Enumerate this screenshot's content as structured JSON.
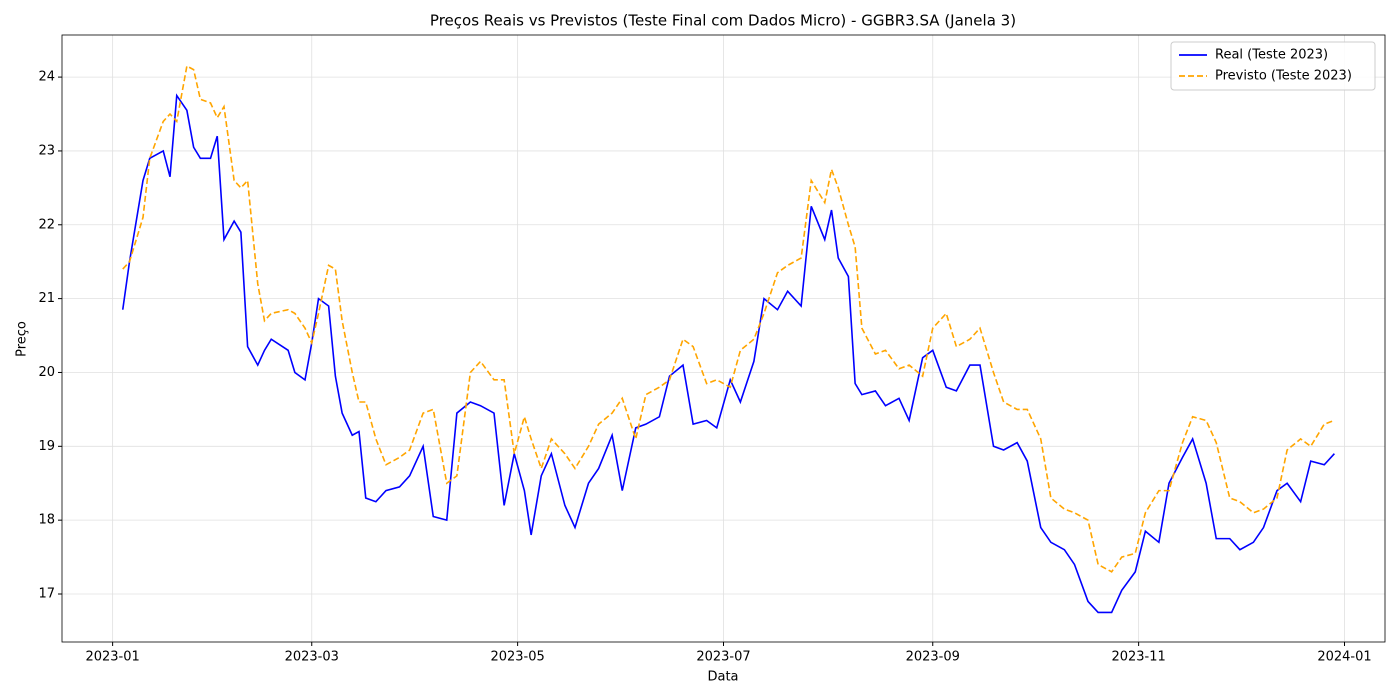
{
  "chart_data": {
    "type": "line",
    "title": "Preços Reais vs Previstos (Teste Final com Dados Micro) - GGBR3.SA (Janela 3)",
    "xlabel": "Data",
    "ylabel": "Preço",
    "x": [
      "2023-01-04",
      "2023-01-06",
      "2023-01-10",
      "2023-01-12",
      "2023-01-16",
      "2023-01-18",
      "2023-01-20",
      "2023-01-23",
      "2023-01-25",
      "2023-01-27",
      "2023-01-30",
      "2023-02-01",
      "2023-02-03",
      "2023-02-06",
      "2023-02-08",
      "2023-02-10",
      "2023-02-13",
      "2023-02-15",
      "2023-02-17",
      "2023-02-22",
      "2023-02-24",
      "2023-02-27",
      "2023-03-01",
      "2023-03-03",
      "2023-03-06",
      "2023-03-08",
      "2023-03-10",
      "2023-03-13",
      "2023-03-15",
      "2023-03-17",
      "2023-03-20",
      "2023-03-23",
      "2023-03-27",
      "2023-03-30",
      "2023-04-03",
      "2023-04-06",
      "2023-04-10",
      "2023-04-13",
      "2023-04-17",
      "2023-04-20",
      "2023-04-24",
      "2023-04-27",
      "2023-04-30",
      "2023-05-03",
      "2023-05-05",
      "2023-05-08",
      "2023-05-11",
      "2023-05-15",
      "2023-05-18",
      "2023-05-22",
      "2023-05-25",
      "2023-05-29",
      "2023-06-01",
      "2023-06-05",
      "2023-06-08",
      "2023-06-12",
      "2023-06-15",
      "2023-06-19",
      "2023-06-22",
      "2023-06-26",
      "2023-06-29",
      "2023-07-03",
      "2023-07-06",
      "2023-07-10",
      "2023-07-13",
      "2023-07-17",
      "2023-07-20",
      "2023-07-24",
      "2023-07-27",
      "2023-07-31",
      "2023-08-02",
      "2023-08-04",
      "2023-08-07",
      "2023-08-09",
      "2023-08-11",
      "2023-08-15",
      "2023-08-18",
      "2023-08-22",
      "2023-08-25",
      "2023-08-29",
      "2023-09-01",
      "2023-09-05",
      "2023-09-08",
      "2023-09-12",
      "2023-09-15",
      "2023-09-19",
      "2023-09-22",
      "2023-09-26",
      "2023-09-29",
      "2023-10-03",
      "2023-10-06",
      "2023-10-10",
      "2023-10-13",
      "2023-10-17",
      "2023-10-20",
      "2023-10-24",
      "2023-10-27",
      "2023-10-31",
      "2023-11-03",
      "2023-11-07",
      "2023-11-10",
      "2023-11-14",
      "2023-11-17",
      "2023-11-21",
      "2023-11-24",
      "2023-11-28",
      "2023-12-01",
      "2023-12-05",
      "2023-12-08",
      "2023-12-12",
      "2023-12-15",
      "2023-12-19",
      "2023-12-22",
      "2023-12-26",
      "2023-12-29"
    ],
    "series": [
      {
        "name": "Real (Teste 2023)",
        "color": "#0000ff",
        "dash": false,
        "values": [
          20.85,
          21.5,
          22.6,
          22.9,
          23.0,
          22.65,
          23.75,
          23.55,
          23.05,
          22.9,
          22.9,
          23.2,
          21.8,
          22.05,
          21.9,
          20.35,
          20.1,
          20.3,
          20.45,
          20.3,
          20.0,
          19.9,
          20.4,
          21.0,
          20.9,
          19.95,
          19.45,
          19.15,
          19.2,
          18.3,
          18.25,
          18.4,
          18.45,
          18.6,
          19.0,
          18.05,
          18.0,
          19.45,
          19.6,
          19.55,
          19.45,
          18.2,
          18.9,
          18.4,
          17.8,
          18.6,
          18.9,
          18.2,
          17.9,
          18.5,
          18.7,
          19.15,
          18.4,
          19.25,
          19.3,
          19.4,
          19.95,
          20.1,
          19.3,
          19.35,
          19.25,
          19.9,
          19.6,
          20.15,
          21.0,
          20.85,
          21.1,
          20.9,
          22.25,
          21.8,
          22.2,
          21.55,
          21.3,
          19.85,
          19.7,
          19.75,
          19.55,
          19.65,
          19.35,
          20.2,
          20.3,
          19.8,
          19.75,
          20.1,
          20.1,
          19.0,
          18.95,
          19.05,
          18.8,
          17.9,
          17.7,
          17.6,
          17.4,
          16.9,
          16.75,
          16.75,
          17.05,
          17.3,
          17.85,
          17.7,
          18.5,
          18.85,
          19.1,
          18.5,
          17.75,
          17.75,
          17.6,
          17.7,
          17.9,
          18.4,
          18.5,
          18.25,
          18.8,
          18.75,
          18.9
        ]
      },
      {
        "name": "Previsto (Teste 2023)",
        "color": "#ffa500",
        "dash": true,
        "values": [
          21.4,
          21.5,
          22.1,
          22.9,
          23.4,
          23.5,
          23.4,
          24.15,
          24.1,
          23.7,
          23.65,
          23.45,
          23.6,
          22.6,
          22.5,
          22.6,
          21.2,
          20.7,
          20.8,
          20.85,
          20.8,
          20.6,
          20.4,
          20.8,
          21.45,
          21.4,
          20.7,
          20.0,
          19.6,
          19.6,
          19.1,
          18.75,
          18.85,
          18.95,
          19.45,
          19.5,
          18.5,
          18.6,
          20.0,
          20.15,
          19.9,
          19.9,
          18.9,
          19.4,
          19.1,
          18.7,
          19.1,
          18.9,
          18.7,
          19.0,
          19.3,
          19.45,
          19.65,
          19.1,
          19.7,
          19.8,
          19.9,
          20.45,
          20.35,
          19.85,
          19.9,
          19.8,
          20.3,
          20.45,
          20.8,
          21.35,
          21.45,
          21.55,
          22.6,
          22.3,
          22.75,
          22.5,
          22.0,
          21.7,
          20.6,
          20.25,
          20.3,
          20.05,
          20.1,
          19.95,
          20.6,
          20.8,
          20.35,
          20.45,
          20.6,
          20.0,
          19.6,
          19.5,
          19.5,
          19.1,
          18.3,
          18.15,
          18.1,
          18.0,
          17.4,
          17.3,
          17.5,
          17.55,
          18.1,
          18.4,
          18.4,
          19.05,
          19.4,
          19.35,
          19.05,
          18.3,
          18.25,
          18.1,
          18.15,
          18.3,
          18.95,
          19.1,
          19.0,
          19.3,
          19.35
        ]
      }
    ],
    "xlim": [
      "2022-12-17",
      "2024-01-13"
    ],
    "xticks": [
      {
        "value": "2023-01-01",
        "label": "2023-01"
      },
      {
        "value": "2023-03-01",
        "label": "2023-03"
      },
      {
        "value": "2023-05-01",
        "label": "2023-05"
      },
      {
        "value": "2023-07-01",
        "label": "2023-07"
      },
      {
        "value": "2023-09-01",
        "label": "2023-09"
      },
      {
        "value": "2023-11-01",
        "label": "2023-11"
      },
      {
        "value": "2024-01-01",
        "label": "2024-01"
      }
    ],
    "ylim": [
      16.35,
      24.57
    ],
    "yticks": [
      17,
      18,
      19,
      20,
      21,
      22,
      23,
      24
    ],
    "grid": true,
    "legend": "upper right"
  }
}
